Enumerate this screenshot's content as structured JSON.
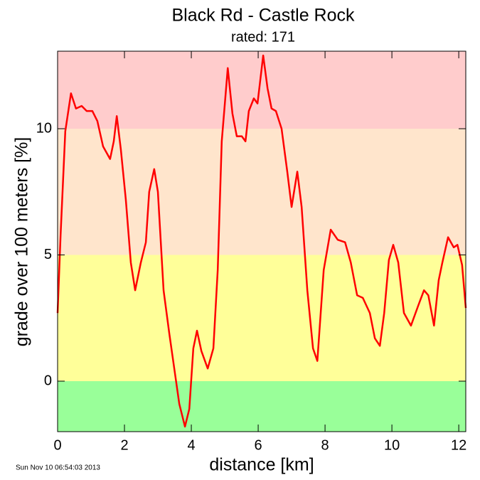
{
  "chart_data": {
    "type": "line",
    "title": "Black Rd - Castle Rock",
    "subtitle": "rated: 171",
    "x_label": "distance [km]",
    "y_label": "grade over 100 meters [%]",
    "timestamp": "Sun Nov 10 06:54:03 2013",
    "xlim": [
      0,
      12.21
    ],
    "ylim": [
      -2,
      13.07
    ],
    "xticks": [
      0,
      2,
      4,
      6,
      8,
      10,
      12
    ],
    "yticks": [
      0,
      5,
      10
    ],
    "bands": [
      {
        "from": -2,
        "to": 0,
        "color": "#99ff99"
      },
      {
        "from": 0,
        "to": 5,
        "color": "#ffff99"
      },
      {
        "from": 5,
        "to": 10,
        "color": "#ffe5cc"
      },
      {
        "from": 10,
        "to": 13.07,
        "color": "#ffcccc"
      }
    ],
    "series": [
      {
        "color": "#ff0000",
        "x": [
          0,
          0.09,
          0.23,
          0.4,
          0.55,
          0.72,
          0.87,
          1.04,
          1.19,
          1.36,
          1.57,
          1.68,
          1.77,
          1.89,
          2.04,
          2.19,
          2.32,
          2.49,
          2.64,
          2.74,
          2.89,
          3.0,
          3.17,
          3.34,
          3.49,
          3.64,
          3.81,
          3.94,
          4.06,
          4.17,
          4.3,
          4.49,
          4.66,
          4.79,
          4.91,
          5.09,
          5.23,
          5.36,
          5.51,
          5.62,
          5.72,
          5.87,
          5.98,
          6.15,
          6.28,
          6.4,
          6.53,
          6.7,
          6.87,
          7.0,
          7.17,
          7.3,
          7.47,
          7.64,
          7.77,
          7.96,
          8.17,
          8.38,
          8.6,
          8.77,
          8.96,
          9.13,
          9.34,
          9.49,
          9.64,
          9.77,
          9.91,
          10.04,
          10.19,
          10.36,
          10.57,
          10.79,
          10.96,
          11.09,
          11.26,
          11.4,
          11.51,
          11.68,
          11.85,
          11.96,
          12.1,
          12.21
        ],
        "values": [
          2.7,
          5.8,
          9.9,
          11.4,
          10.8,
          10.9,
          10.7,
          10.7,
          10.3,
          9.3,
          8.8,
          9.5,
          10.5,
          9.2,
          7.2,
          4.7,
          3.6,
          4.7,
          5.5,
          7.5,
          8.4,
          7.5,
          3.6,
          1.9,
          0.5,
          -0.9,
          -1.8,
          -1.1,
          1.3,
          2.0,
          1.2,
          0.5,
          1.3,
          4.4,
          9.5,
          12.4,
          10.6,
          9.7,
          9.7,
          9.5,
          10.7,
          11.2,
          11.0,
          12.9,
          11.6,
          10.8,
          10.7,
          10.0,
          8.3,
          6.9,
          8.3,
          6.9,
          3.6,
          1.3,
          0.8,
          4.4,
          6.0,
          5.6,
          5.5,
          4.7,
          3.4,
          3.3,
          2.7,
          1.7,
          1.4,
          2.7,
          4.8,
          5.4,
          4.7,
          2.7,
          2.2,
          3.0,
          3.6,
          3.4,
          2.2,
          4.0,
          4.7,
          5.7,
          5.3,
          5.4,
          4.6,
          2.9
        ]
      }
    ]
  }
}
